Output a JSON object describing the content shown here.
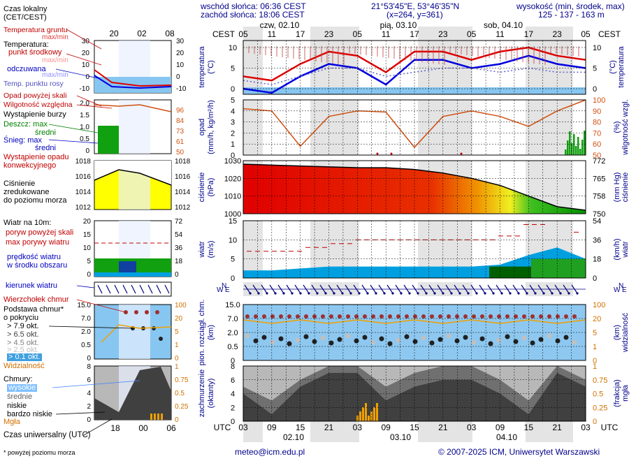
{
  "header": {
    "sunrise": "wschód słońca: 06:36 CEST",
    "sunset": "zachód słońca: 18:06 CEST",
    "coords": "21°53'45\"E, 53°46'35\"N",
    "grid": "(x=264,  y=361)",
    "altitude_title": "wysokość (min, środek, max)",
    "altitude_values": "125 - 137 - 163 m"
  },
  "legend": {
    "local_time": "Czas lokalny",
    "local_time_tz": "(CET/CEST)",
    "ground_temp": "Temperatura gruntu",
    "ground_temp_sub": "max/min",
    "temperature": "Temperatura:",
    "mid_point": "punkt środkowy",
    "max_min": "max/min",
    "felt": "odczuwana",
    "max_min2": "max/min",
    "dew_point": "Temp. punktu rosy",
    "precip_above": "Opad powyżej skali",
    "humidity": "Wilgotność względna",
    "storm": "Wystąpienie burzy",
    "rain_max": "Deszcz: max",
    "rain_mean": "średni",
    "snow_max": "Śnieg:     max",
    "snow_mean": "średni",
    "convective_1": "Wystąpienie opadu",
    "convective_2": "konwekcyjnego",
    "pressure_1": "Ciśnienie",
    "pressure_2": "zredukowane",
    "pressure_3": "do poziomu morza",
    "wind_at": "Wiatr na 10m:",
    "gust_above": "poryw powyżej skali",
    "gust_max": "max porywy wiatru",
    "wind_speed_1": "prędkość wiatru",
    "wind_speed_2": "w środku obszaru",
    "wind_dir": "kierunek wiatru",
    "cloud_top": "Wierzchołek chmur",
    "cloud_base_1": "Podstawa chmur*",
    "cloud_base_2": "o pokryciu",
    "okt_79": "> 7.9 okt.",
    "okt_65": "> 6.5 okt.",
    "okt_45": "> 4.5 okt.",
    "okt_25": "> 2.5 okt.",
    "okt_01": "> 0.1 okt.",
    "visibility": "Widzialność",
    "clouds": "Chmury:",
    "high": "wysokie",
    "medium": "średnie",
    "low": "niskie",
    "very_low": "bardzo niskie",
    "fog": "Mgła",
    "utc_time": "Czas uniwersalny (UTC)",
    "footnote": "* powyżej poziomu morza"
  },
  "legend_axes": {
    "top_ticks": [
      "20",
      "02",
      "08"
    ],
    "bottom_ticks": [
      "18",
      "00",
      "06"
    ],
    "temp_ticks": [
      "30",
      "20",
      "10",
      "0",
      "-10"
    ],
    "precip_ticks": [
      "2.0",
      "1.5",
      "1.0",
      "0.5",
      "0"
    ],
    "hum_ticks": [
      "96",
      "84",
      "73",
      "61",
      "50"
    ],
    "press_ticks_l": [
      "1018",
      "1016",
      "1014",
      "1012"
    ],
    "press_ticks_r": [
      "1018",
      "1016",
      "1014",
      "1012"
    ],
    "wind_ticks_l": [
      "20",
      "15",
      "10",
      "5",
      "0"
    ],
    "wind_ticks_r": [
      "72",
      "54",
      "36",
      "18",
      "0"
    ],
    "cbase_ticks_l": [
      "15.0",
      "7.0",
      "2.0",
      "0.5",
      "0"
    ],
    "vis_ticks_r": [
      "100",
      "20",
      "5",
      "1",
      "0"
    ],
    "cloud_ticks_l": [
      "8",
      "6",
      "4",
      "2",
      "0"
    ],
    "fog_ticks_r": [
      "1",
      "0.75",
      "0.5",
      "0.25",
      "0"
    ]
  },
  "main": {
    "cest_label": "CEST",
    "utc_label": "UTC",
    "top_hours": [
      "05",
      "11",
      "17",
      "23",
      "05",
      "11",
      "17",
      "23",
      "05",
      "11",
      "17",
      "23",
      "05"
    ],
    "bottom_hours": [
      "03",
      "09",
      "15",
      "21",
      "03",
      "09",
      "15",
      "21",
      "03",
      "09",
      "15",
      "21",
      "03"
    ],
    "days_top": [
      "czw, 02.10",
      "pią, 03.10",
      "sob, 04.10"
    ],
    "days_bottom": [
      "02.10",
      "03.10",
      "04.10"
    ],
    "temp_label": "temperatura",
    "temp_unit": "(°C)",
    "precip_label": "opad",
    "precip_unit": "(mm/h, kg/m²/h)",
    "hum_label": "wilgotność wzgl.",
    "hum_unit": "(%)",
    "press_label": "ciśnienie",
    "press_unit": "(hPa)",
    "press_unit_r": "(mm Hg)",
    "wind_label": "wiatr",
    "wind_unit": "(m/s)",
    "wind_unit_r": "(km/h)",
    "cbase_label": "pion. rozciągł. chm.",
    "cbase_unit": "(km)",
    "vis_label": "widzialność",
    "vis_unit": "(km)",
    "cloud_label": "zachmurzenie",
    "cloud_unit": "(oktanty)",
    "fog_label": "mgła",
    "fog_unit": "(frakcja)",
    "compass": [
      "N",
      "W",
      "E",
      "S"
    ]
  },
  "footer": {
    "email": "meteo@icm.edu.pl",
    "copyright": "© 2007-2025 ICM, Uniwersytet Warszawski"
  },
  "colors": {
    "temp": "#e00000",
    "felt": "#0000e0",
    "dew": "#6060d0",
    "humidity": "#d05010",
    "pressure_fill": "gradient red→green",
    "wind_fill": "#00a0e0",
    "wind_strong": "#008000",
    "cloud_dark": "#404040",
    "sky": "#87c6f0",
    "fog": "#f0a000"
  },
  "chart_data": [
    {
      "type": "line",
      "name": "temperature",
      "x": [
        "05",
        "11",
        "17",
        "23",
        "05",
        "11",
        "17",
        "23",
        "05",
        "11",
        "17",
        "23",
        "05"
      ],
      "series": [
        {
          "values": [
            3,
            2,
            6,
            9,
            8,
            4,
            9,
            9,
            7,
            9,
            10,
            8,
            7
          ]
        },
        {
          "values": [
            0,
            -1,
            3,
            6,
            5,
            1,
            7,
            7,
            5,
            6,
            8,
            6,
            5
          ]
        },
        {
          "values": [
            2,
            1,
            3,
            5,
            5,
            3,
            4,
            5,
            5,
            4,
            5,
            4,
            4
          ]
        }
      ],
      "ylim": [
        0,
        10
      ],
      "yticks": [
        0,
        5,
        10
      ]
    },
    {
      "type": "line",
      "name": "humidity",
      "x": [
        "05",
        "11",
        "17",
        "23",
        "05",
        "11",
        "17",
        "23",
        "05",
        "11",
        "17",
        "23",
        "05"
      ],
      "series": [
        {
          "values": [
            92,
            90,
            58,
            85,
            90,
            89,
            57,
            85,
            90,
            85,
            76,
            90,
            100
          ]
        }
      ],
      "ylim": [
        50,
        100
      ],
      "yticks": [
        50,
        60,
        70,
        80,
        90,
        100
      ]
    },
    {
      "type": "area",
      "name": "pressure",
      "x": [
        "05",
        "11",
        "17",
        "23",
        "05",
        "11",
        "17",
        "23",
        "05",
        "11",
        "17",
        "23",
        "05"
      ],
      "series": [
        {
          "values": [
            1028,
            1027.5,
            1027,
            1026.5,
            1026,
            1026,
            1025,
            1023,
            1020,
            1016,
            1010,
            1004,
            1002
          ]
        }
      ],
      "ylim": [
        1000,
        1030
      ],
      "yticks": [
        1000,
        1010,
        1020,
        1030
      ]
    },
    {
      "type": "area",
      "name": "wind",
      "x": [
        "05",
        "11",
        "17",
        "23",
        "05",
        "11",
        "17",
        "23",
        "05",
        "11",
        "17",
        "23",
        "05"
      ],
      "series": [
        {
          "values": [
            2,
            2,
            2.5,
            3,
            3,
            3,
            3,
            3,
            3,
            3.5,
            6,
            8,
            5
          ]
        },
        {
          "values": [
            7,
            7,
            8,
            9,
            10,
            10,
            10,
            10,
            10,
            11,
            14,
            15,
            12
          ]
        }
      ],
      "ylim": [
        0,
        15
      ],
      "yticks": [
        0,
        5,
        10,
        15
      ]
    },
    {
      "type": "area",
      "name": "clouds",
      "x": [
        "03",
        "09",
        "15",
        "21",
        "03",
        "09",
        "15",
        "21",
        "03",
        "09",
        "15",
        "21",
        "03"
      ],
      "series": [
        {
          "values": [
            5,
            3,
            6,
            8,
            8,
            5,
            7,
            8,
            8,
            6,
            3,
            8,
            6
          ]
        },
        {
          "values": [
            4,
            1,
            5,
            7,
            7,
            3,
            5,
            6,
            6,
            4,
            1,
            7,
            5
          ]
        }
      ],
      "ylim": [
        0,
        8
      ],
      "yticks": [
        0,
        2,
        4,
        6,
        8
      ]
    }
  ]
}
